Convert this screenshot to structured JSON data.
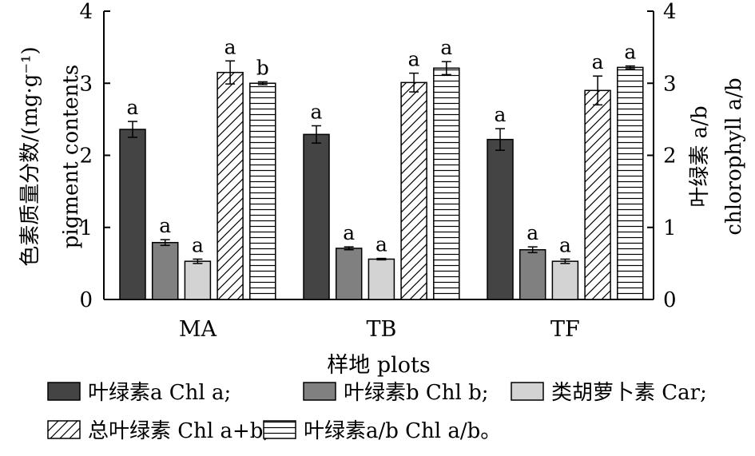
{
  "chart_data": {
    "type": "bar",
    "categories": [
      "MA",
      "TB",
      "TF"
    ],
    "xlabel": "样地 plots",
    "ylabel_left": [
      "色素质量分数/(mg·g⁻¹)",
      "pigment contents"
    ],
    "ylabel_right": [
      "叶绿素 a/b",
      "chlorophyll a/b"
    ],
    "ylim_left": [
      0,
      4
    ],
    "ylim_right": [
      0,
      4
    ],
    "yticks": [
      "0",
      "1",
      "2",
      "3",
      "4"
    ],
    "grid": false,
    "legend_position": "bottom",
    "series": [
      {
        "name": "叶绿素a Chl a;",
        "axis": "left",
        "fill": "#444444",
        "pattern": "solid",
        "values": [
          2.36,
          2.29,
          2.22
        ],
        "errors": [
          0.11,
          0.12,
          0.15
        ],
        "letters": [
          "a",
          "a",
          "a"
        ]
      },
      {
        "name": "叶绿素b Chl b;",
        "axis": "left",
        "fill": "#808080",
        "pattern": "solid",
        "values": [
          0.79,
          0.71,
          0.69
        ],
        "errors": [
          0.04,
          0.02,
          0.04
        ],
        "letters": [
          "a",
          "a",
          "a"
        ]
      },
      {
        "name": "类胡萝卜素 Car;",
        "axis": "left",
        "fill": "#d3d3d3",
        "pattern": "solid",
        "values": [
          0.53,
          0.56,
          0.53
        ],
        "errors": [
          0.03,
          0.01,
          0.03
        ],
        "letters": [
          "a",
          "a",
          "a"
        ]
      },
      {
        "name": "总叶绿素 Chl a+b;",
        "axis": "left",
        "fill": "#ffffff",
        "pattern": "diagonal",
        "values": [
          3.15,
          3.01,
          2.9
        ],
        "errors": [
          0.16,
          0.13,
          0.2
        ],
        "letters": [
          "a",
          "a",
          "a"
        ]
      },
      {
        "name": "叶绿素a/b Chl a/b。",
        "axis": "right",
        "fill": "#ffffff",
        "pattern": "horizontal",
        "values": [
          3.0,
          3.21,
          3.22
        ],
        "errors": [
          0.02,
          0.09,
          0.02
        ],
        "letters": [
          "b",
          "a",
          "a"
        ]
      }
    ]
  }
}
